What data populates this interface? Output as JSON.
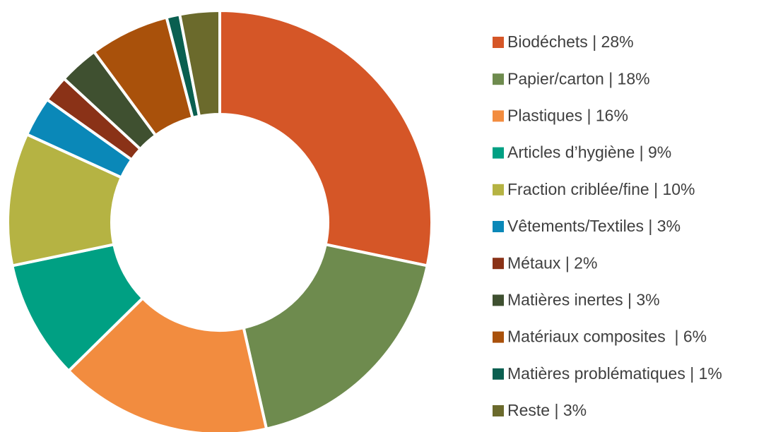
{
  "chart_data": {
    "type": "donut",
    "categories": [
      "Biodéchets | 28%",
      "Papier/carton | 18%",
      "Plastiques | 16%",
      "Articles d’hygiène | 9%",
      "Fraction criblée/fine | 10%",
      "Vêtements/Textiles | 3%",
      "Métaux | 2%",
      "Matières inertes | 3%",
      "Matériaux composites  | 6%",
      "Matières problématiques | 1%",
      "Reste | 3%"
    ],
    "values": [
      28,
      18,
      16,
      9,
      10,
      3,
      2,
      3,
      6,
      1,
      3
    ],
    "colors": [
      "#d55627",
      "#6e8b4e",
      "#f28c3f",
      "#00a083",
      "#b5b343",
      "#0a88b8",
      "#8a3217",
      "#3f5030",
      "#a9510b",
      "#0a5f50",
      "#6b6a2c"
    ],
    "legend": "right"
  }
}
